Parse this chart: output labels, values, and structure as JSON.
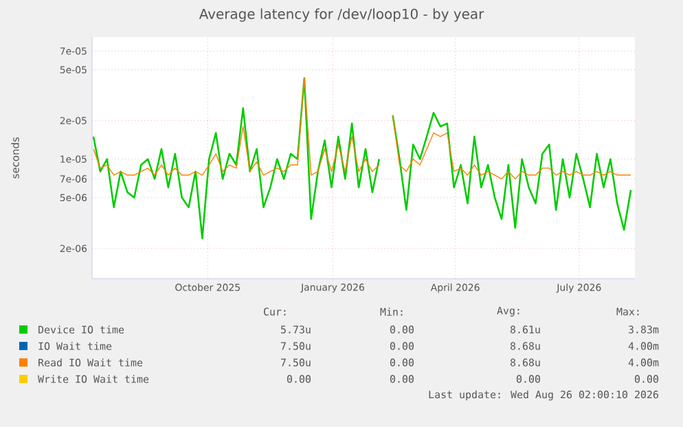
{
  "chart_data": {
    "type": "line",
    "title": "Average latency for /dev/loop10 - by year",
    "ylabel": "seconds",
    "log": "y",
    "grid": true,
    "legend": "bottom",
    "xlim": [
      "2025-07-23",
      "2026-08-26"
    ],
    "xticks": [
      {
        "value": "2025-10-16",
        "label": "October 2025"
      },
      {
        "value": "2026-01-16",
        "label": "January 2026"
      },
      {
        "value": "2026-04-16",
        "label": "April 2026"
      },
      {
        "value": "2026-07-16",
        "label": "July 2026"
      }
    ],
    "ylim": [
      1.16e-06,
      9e-05
    ],
    "yticks": [
      {
        "value": 2e-06,
        "label": "2e-06"
      },
      {
        "value": 5e-06,
        "label": "5e-06"
      },
      {
        "value": 7e-06,
        "label": "7e-06"
      },
      {
        "value": 1e-05,
        "label": "1e-05"
      },
      {
        "value": 2e-05,
        "label": "2e-05"
      },
      {
        "value": 5e-05,
        "label": "5e-05"
      },
      {
        "value": 7e-05,
        "label": "7e-05"
      }
    ],
    "x": [
      "2025-07-24",
      "2025-07-29",
      "2025-08-03",
      "2025-08-08",
      "2025-08-13",
      "2025-08-18",
      "2025-08-23",
      "2025-08-28",
      "2025-09-02",
      "2025-09-07",
      "2025-09-12",
      "2025-09-17",
      "2025-09-22",
      "2025-09-27",
      "2025-10-02",
      "2025-10-07",
      "2025-10-12",
      "2025-10-17",
      "2025-10-22",
      "2025-10-27",
      "2025-11-01",
      "2025-11-06",
      "2025-11-11",
      "2025-11-16",
      "2025-11-21",
      "2025-11-26",
      "2025-12-01",
      "2025-12-06",
      "2025-12-11",
      "2025-12-16",
      "2025-12-21",
      "2025-12-26",
      "2025-12-31",
      "2026-01-05",
      "2026-01-10",
      "2026-01-15",
      "2026-01-20",
      "2026-01-25",
      "2026-01-30",
      "2026-02-04",
      "2026-02-09",
      "2026-02-14",
      "2026-02-19",
      "2026-02-24",
      "2026-03-01",
      "2026-03-06",
      "2026-03-11",
      "2026-03-16",
      "2026-03-21",
      "2026-03-26",
      "2026-03-31",
      "2026-04-05",
      "2026-04-10",
      "2026-04-15",
      "2026-04-20",
      "2026-04-25",
      "2026-04-30",
      "2026-05-05",
      "2026-05-10",
      "2026-05-15",
      "2026-05-20",
      "2026-05-25",
      "2026-05-30",
      "2026-06-04",
      "2026-06-09",
      "2026-06-14",
      "2026-06-19",
      "2026-06-24",
      "2026-06-29",
      "2026-07-04",
      "2026-07-09",
      "2026-07-14",
      "2026-07-19",
      "2026-07-24",
      "2026-07-29",
      "2026-08-03",
      "2026-08-08",
      "2026-08-13",
      "2026-08-18",
      "2026-08-23"
    ],
    "series": [
      {
        "name": "Device IO time",
        "color": "#00cc00",
        "values": [
          1.5e-05,
          8e-06,
          1e-05,
          4.2e-06,
          8e-06,
          5.5e-06,
          5e-06,
          9e-06,
          1e-05,
          7e-06,
          1.2e-05,
          6e-06,
          1.1e-05,
          5e-06,
          4.2e-06,
          8e-06,
          2.4e-06,
          1e-05,
          1.6e-05,
          7e-06,
          1.1e-05,
          9e-06,
          2.5e-05,
          8e-06,
          1.2e-05,
          4.2e-06,
          6e-06,
          1e-05,
          7e-06,
          1.1e-05,
          1e-05,
          4.3e-05,
          3.4e-06,
          8e-06,
          1.4e-05,
          6e-06,
          1.5e-05,
          7e-06,
          1.9e-05,
          6e-06,
          1.2e-05,
          5.5e-06,
          1e-05,
          null,
          2.2e-05,
          1e-05,
          4e-06,
          1.3e-05,
          1e-05,
          1.5e-05,
          2.3e-05,
          1.8e-05,
          1.9e-05,
          6e-06,
          9e-06,
          4.5e-06,
          1.5e-05,
          6e-06,
          9e-06,
          5e-06,
          3.4e-06,
          9e-06,
          2.9e-06,
          1e-05,
          6e-06,
          4.5e-06,
          1.1e-05,
          1.3e-05,
          4e-06,
          1e-05,
          5e-06,
          1.1e-05,
          7e-06,
          4.2e-06,
          1.1e-05,
          6e-06,
          1e-05,
          4.5e-06,
          2.8e-06,
          5.73e-06
        ]
      },
      {
        "name": "IO Wait time",
        "color": "#0066b3",
        "values": [
          null,
          null,
          null,
          null,
          null,
          null,
          null,
          null,
          null,
          null,
          null,
          null,
          null,
          null,
          null,
          null,
          null,
          null,
          null,
          null,
          null,
          null,
          null,
          null,
          null,
          null,
          null,
          null,
          null,
          null,
          null,
          null,
          null,
          null,
          null,
          null,
          null,
          null,
          null,
          null,
          null,
          null,
          null,
          null,
          null,
          null,
          null,
          null,
          null,
          null,
          null,
          null,
          null,
          null,
          null,
          null,
          null,
          null,
          null,
          null,
          null,
          null,
          null,
          null,
          null,
          null,
          null,
          null,
          null,
          null,
          null,
          null,
          null,
          null,
          null,
          null,
          null,
          null,
          null,
          null
        ]
      },
      {
        "name": "Read IO Wait time",
        "color": "#ff8000",
        "values": [
          1.2e-05,
          8.5e-06,
          9e-06,
          7.5e-06,
          8e-06,
          7.5e-06,
          7.5e-06,
          8e-06,
          8.5e-06,
          7.5e-06,
          9e-06,
          7.5e-06,
          8.5e-06,
          7.5e-06,
          7.5e-06,
          8e-06,
          7.5e-06,
          9e-06,
          1.1e-05,
          8e-06,
          9e-06,
          8.5e-06,
          1.8e-05,
          8e-06,
          9.5e-06,
          7.5e-06,
          8e-06,
          8.5e-06,
          8e-06,
          9e-06,
          9e-06,
          4.3e-05,
          7.5e-06,
          8e-06,
          1.2e-05,
          8e-06,
          1.3e-05,
          8e-06,
          1.5e-05,
          8e-06,
          1e-05,
          8e-06,
          9e-06,
          null,
          2.2e-05,
          9e-06,
          8e-06,
          1e-05,
          9e-06,
          1.2e-05,
          1.6e-05,
          1.5e-05,
          1.6e-05,
          8e-06,
          8.5e-06,
          7.5e-06,
          9e-06,
          7.5e-06,
          8e-06,
          7.5e-06,
          7e-06,
          8e-06,
          7e-06,
          8e-06,
          7.5e-06,
          7.5e-06,
          8.5e-06,
          8.5e-06,
          7.5e-06,
          8e-06,
          7.5e-06,
          8e-06,
          7.5e-06,
          7.5e-06,
          8e-06,
          7.5e-06,
          8e-06,
          7.5e-06,
          7.5e-06,
          7.5e-06
        ]
      },
      {
        "name": "Write IO Wait time",
        "color": "#ffcc00",
        "values": [
          null,
          null,
          null,
          null,
          null,
          null,
          null,
          null,
          null,
          null,
          null,
          null,
          null,
          null,
          null,
          null,
          null,
          null,
          null,
          null,
          null,
          null,
          null,
          null,
          null,
          null,
          null,
          null,
          null,
          null,
          null,
          null,
          null,
          null,
          null,
          null,
          null,
          null,
          null,
          null,
          null,
          null,
          null,
          null,
          null,
          null,
          null,
          null,
          null,
          null,
          null,
          null,
          null,
          null,
          null,
          null,
          null,
          null,
          null,
          null,
          null,
          null,
          null,
          null,
          null,
          null,
          null,
          null,
          null,
          null,
          null,
          null,
          null,
          null,
          null,
          null,
          null,
          null,
          null,
          null
        ]
      }
    ],
    "annotations": [
      "Cur:",
      "Min:",
      "Avg:",
      "Max:",
      "5.73u",
      "0.00",
      "8.61u",
      "3.83m",
      "7.50u",
      "0.00",
      "8.68u",
      "4.00m",
      "7.50u",
      "0.00",
      "8.68u",
      "4.00m",
      "0.00",
      "0.00",
      "0.00",
      "0.00",
      "Last update: Wed Aug 26 02:00:10 2026"
    ]
  }
}
